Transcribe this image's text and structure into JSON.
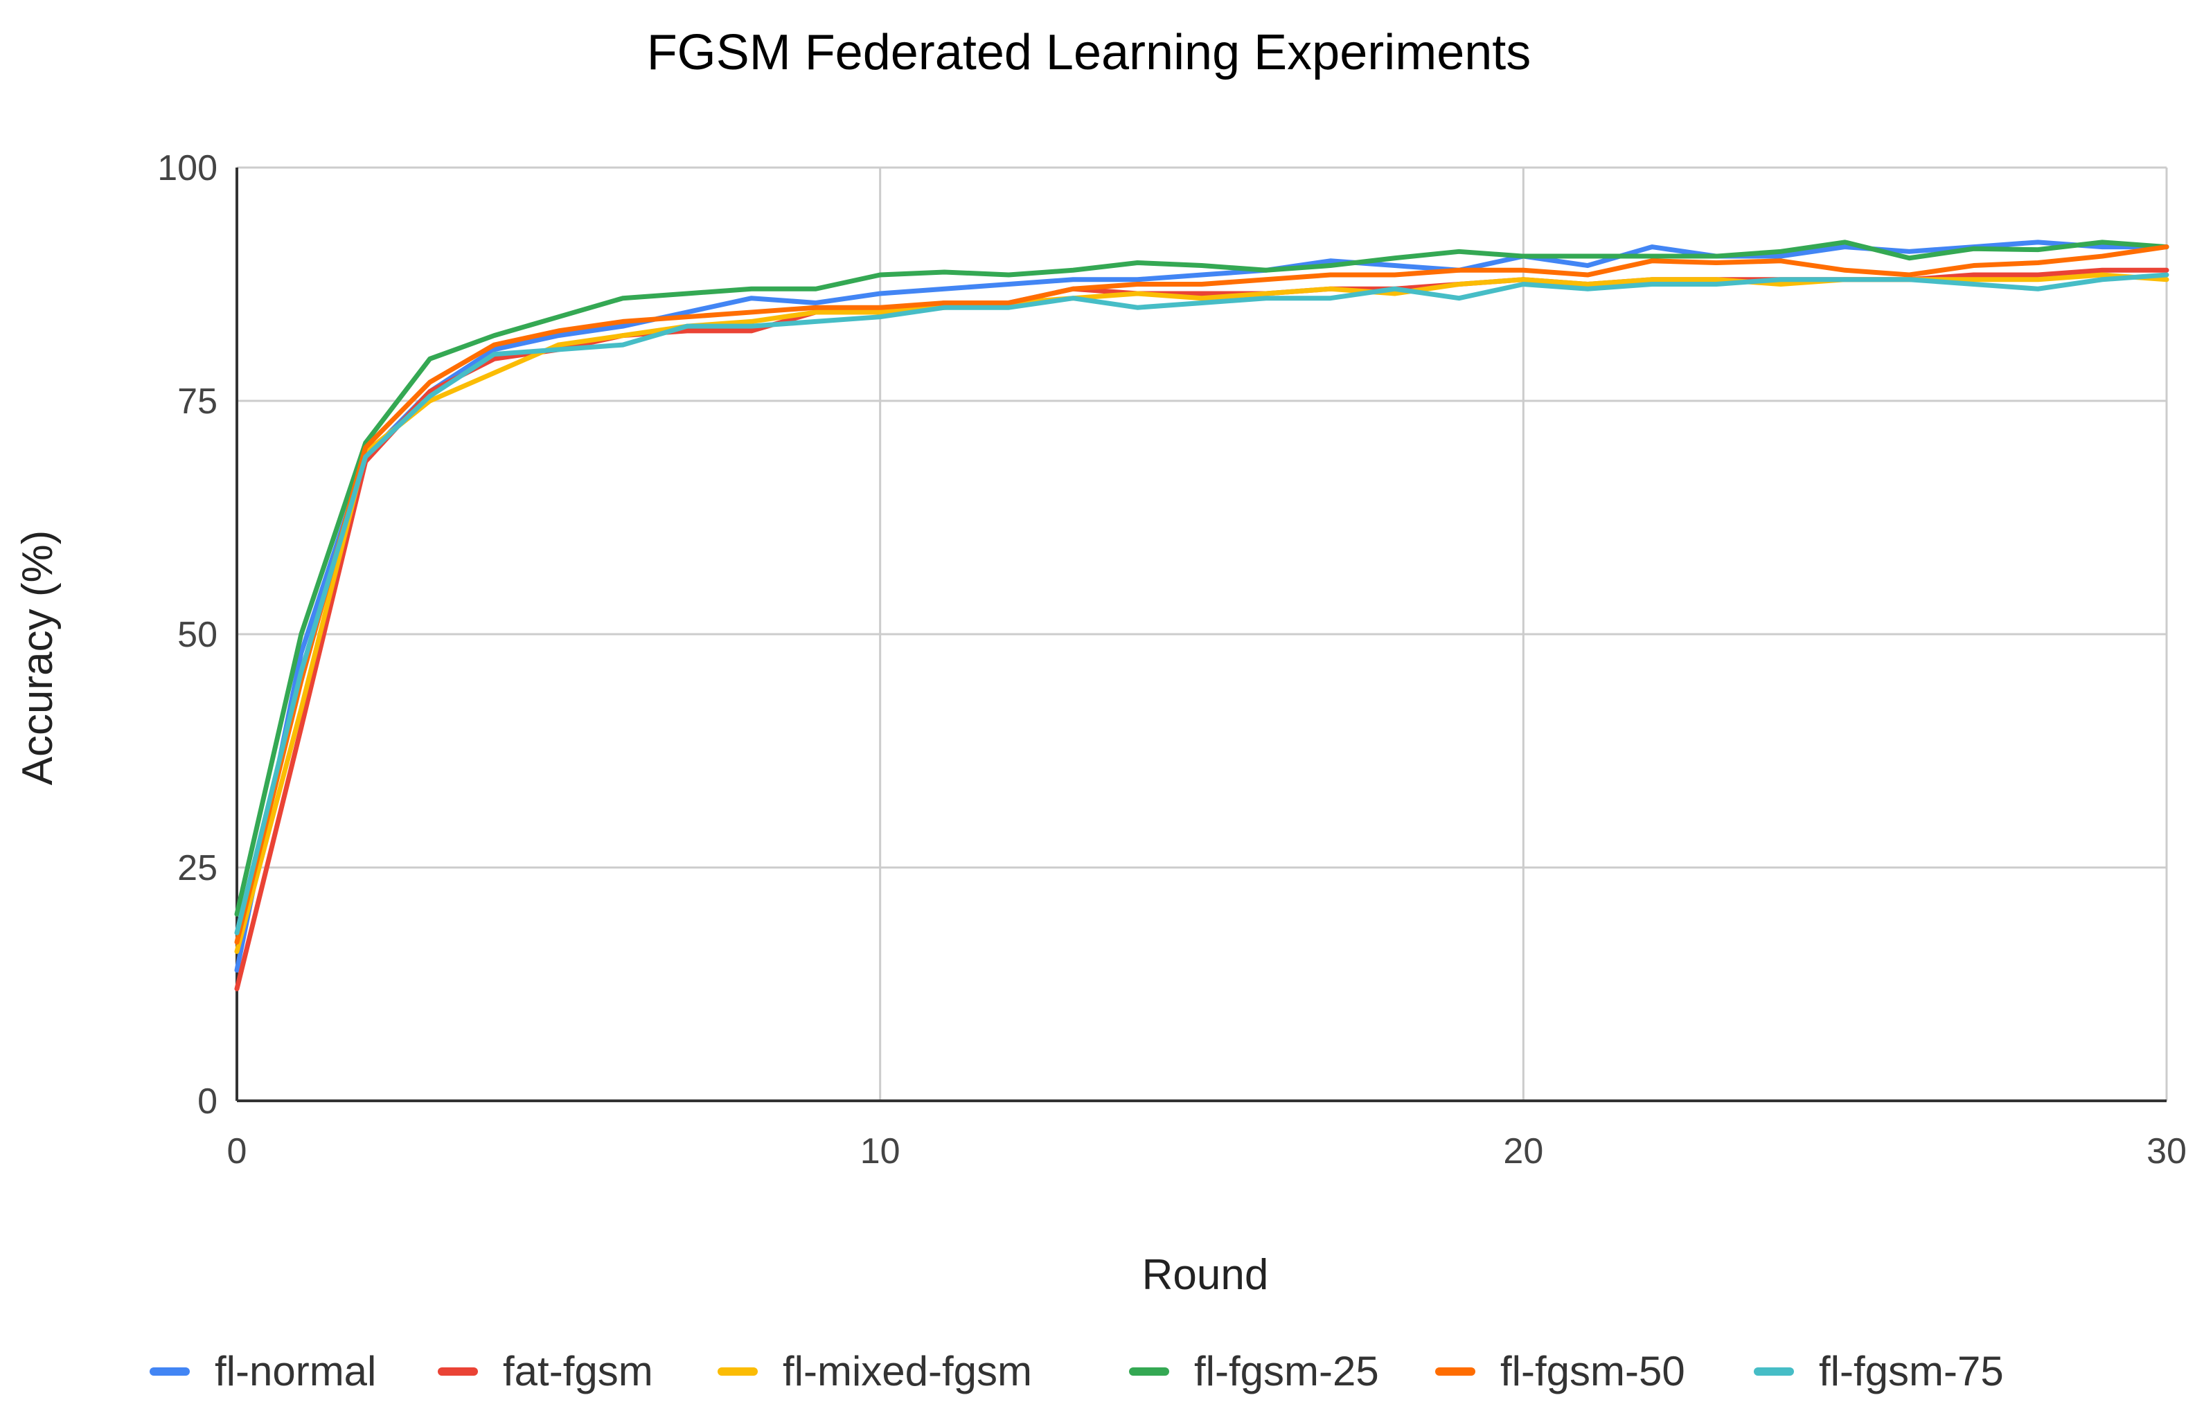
{
  "chart_data": {
    "type": "line",
    "title": "FGSM Federated Learning Experiments",
    "xlabel": "Round",
    "ylabel": "Accuracy (%)",
    "xlim": [
      0,
      30
    ],
    "ylim": [
      0,
      100
    ],
    "x_ticks": [
      0,
      10,
      20,
      30
    ],
    "y_ticks": [
      0,
      25,
      50,
      75,
      100
    ],
    "grid": true,
    "legend_position": "bottom",
    "x": [
      0,
      1,
      2,
      3,
      4,
      5,
      6,
      7,
      8,
      9,
      10,
      11,
      12,
      13,
      14,
      15,
      16,
      17,
      18,
      19,
      20,
      21,
      22,
      23,
      24,
      25,
      26,
      27,
      28,
      29,
      30
    ],
    "series": [
      {
        "name": "fl-normal",
        "color": "#4285f4",
        "values": [
          14,
          48,
          69,
          76,
          80.5,
          82,
          83,
          84.5,
          86,
          85.5,
          86.5,
          87,
          87.5,
          88,
          88,
          88.5,
          89,
          90,
          89.5,
          89,
          90.5,
          89.5,
          91.5,
          90.5,
          90.5,
          91.5,
          91,
          91.5,
          92,
          91.5,
          91.5
        ]
      },
      {
        "name": "fat-fgsm",
        "color": "#ea4335",
        "values": [
          12,
          40,
          68.5,
          76,
          79.5,
          80.5,
          82,
          82.5,
          82.5,
          84.5,
          84.5,
          85.5,
          85.5,
          87,
          86.5,
          86.5,
          86.5,
          87,
          87,
          87.5,
          88,
          87.5,
          88,
          88,
          88,
          88,
          88,
          88.5,
          88.5,
          89,
          89
        ]
      },
      {
        "name": "fl-mixed-fgsm",
        "color": "#fbbc04",
        "values": [
          16,
          42,
          69.5,
          75,
          78,
          81,
          82,
          83,
          83.5,
          84.5,
          84.5,
          85,
          85.5,
          86,
          86.5,
          86,
          86.5,
          87,
          86.5,
          87.5,
          88,
          87.5,
          88,
          88,
          87.5,
          88,
          88,
          88,
          88,
          88.5,
          88
        ]
      },
      {
        "name": "fl-fgsm-25",
        "color": "#34a853",
        "values": [
          20,
          50,
          70.5,
          79.5,
          82,
          84,
          86,
          86.5,
          87,
          87,
          88.5,
          88.8,
          88.5,
          89,
          89.8,
          89.5,
          89,
          89.5,
          90.3,
          91,
          90.5,
          90.5,
          90.5,
          90.5,
          91,
          92,
          90.3,
          91.3,
          91.2,
          92,
          91.5
        ]
      },
      {
        "name": "fl-fgsm-50",
        "color": "#ff6d01",
        "values": [
          17,
          45,
          70,
          77,
          81,
          82.5,
          83.5,
          84,
          84.5,
          85,
          85,
          85.5,
          85.5,
          87,
          87.5,
          87.5,
          88,
          88.5,
          88.5,
          89,
          89,
          88.5,
          90,
          89.8,
          90,
          89,
          88.5,
          89.5,
          89.8,
          90.5,
          91.5
        ]
      },
      {
        "name": "fl-fgsm-75",
        "color": "#46bdc6",
        "values": [
          18,
          46,
          69,
          75.5,
          80,
          80.5,
          81,
          83,
          83,
          83.5,
          84,
          85,
          85,
          86,
          85,
          85.5,
          86,
          86,
          87,
          86,
          87.5,
          87,
          87.5,
          87.5,
          88,
          88,
          88,
          87.5,
          87,
          88,
          88.5
        ]
      }
    ]
  }
}
